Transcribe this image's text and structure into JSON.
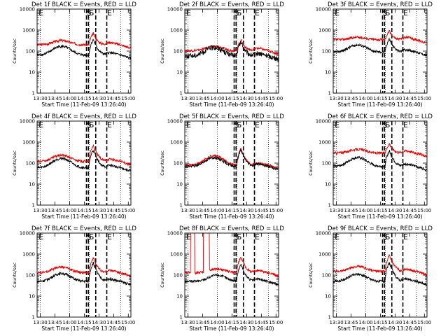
{
  "common": {
    "ylabel": "Counts/sec",
    "xlabel": "Start Time (11-Feb-09 13:26:40)",
    "x_tick_labels": [
      "13:30",
      "13:45",
      "14:00",
      "14:15",
      "14:30",
      "14:45",
      "15:00"
    ],
    "y_tick_labels": [
      "1",
      "10",
      "100",
      "1000",
      "10000"
    ],
    "event_markers": [
      "S",
      "S",
      "E",
      "E"
    ],
    "colors": {
      "events": "#000000",
      "lld": "#e00000"
    }
  },
  "chart_data": [
    {
      "type": "line",
      "title": "Det 1f BLACK = Events, RED = LLD",
      "x_range_minutes_from_start": [
        0,
        96
      ],
      "ylim": [
        1,
        10000
      ],
      "yscale": "log",
      "markers": {
        "dotted_x": [
          3.3,
          33.3,
          53.3,
          85.7
        ],
        "dashed_x": [
          50.5,
          52.5,
          60,
          71.3
        ]
      },
      "series": [
        {
          "color": "red",
          "base": 200,
          "hump_center": 25,
          "hump_factor": 1.6,
          "flare_peak": 700
        },
        {
          "color": "black",
          "base": 65,
          "hump_center": 25,
          "hump_factor": 2.6,
          "flare_peak": 360
        }
      ]
    },
    {
      "type": "line",
      "title": "Det 2f BLACK = Events, RED = LLD",
      "x_range_minutes_from_start": [
        0,
        96
      ],
      "ylim": [
        1,
        10000
      ],
      "yscale": "log",
      "markers": {
        "dotted_x": [
          3.3,
          33.3,
          53.3,
          85.7
        ],
        "dashed_x": [
          50.5,
          52.5,
          60,
          71.3
        ]
      },
      "series": [
        {
          "color": "red",
          "base": 105,
          "hump_center": 30,
          "hump_factor": 1.6,
          "flare_peak": 330
        },
        {
          "color": "black",
          "base": 60,
          "hump_center": 30,
          "hump_factor": 2.5,
          "flare_peak": 260
        }
      ]
    },
    {
      "type": "line",
      "title": "Det 3f BLACK = Events, RED = LLD",
      "x_range_minutes_from_start": [
        0,
        96
      ],
      "ylim": [
        1,
        10000
      ],
      "yscale": "log",
      "markers": {
        "dotted_x": [
          3.3,
          33.3,
          53.3,
          85.7
        ],
        "dashed_x": [
          50.5,
          52.5,
          60,
          71.3
        ]
      },
      "series": [
        {
          "color": "red",
          "base": 350,
          "hump_center": 25,
          "hump_factor": 1.3,
          "flare_peak": 900
        },
        {
          "color": "black",
          "base": 90,
          "hump_center": 25,
          "hump_factor": 2.2,
          "flare_peak": 380
        }
      ]
    },
    {
      "type": "line",
      "title": "Det 4f BLACK = Events, RED = LLD",
      "x_range_minutes_from_start": [
        0,
        96
      ],
      "ylim": [
        1,
        10000
      ],
      "yscale": "log",
      "markers": {
        "dotted_x": [
          3.3,
          33.3,
          53.3,
          85.7
        ],
        "dashed_x": [
          50.5,
          52.5,
          60,
          71.3
        ]
      },
      "series": [
        {
          "color": "red",
          "base": 120,
          "hump_center": 25,
          "hump_factor": 2.0,
          "flare_peak": 700
        },
        {
          "color": "black",
          "base": 60,
          "hump_center": 25,
          "hump_factor": 2.8,
          "flare_peak": 430
        }
      ]
    },
    {
      "type": "line",
      "title": "Det 5f BLACK = Events, RED = LLD",
      "x_range_minutes_from_start": [
        0,
        96
      ],
      "ylim": [
        1,
        10000
      ],
      "yscale": "log",
      "markers": {
        "dotted_x": [
          3.3,
          33.3,
          53.3,
          85.7
        ],
        "dashed_x": [
          50.5,
          52.5,
          60,
          71.3
        ]
      },
      "series": [
        {
          "color": "red",
          "base": 80,
          "hump_center": 30,
          "hump_factor": 2.8,
          "flare_peak": 480
        },
        {
          "color": "black",
          "base": 70,
          "hump_center": 30,
          "hump_factor": 2.6,
          "flare_peak": 420
        }
      ]
    },
    {
      "type": "line",
      "title": "Det 6f BLACK = Events, RED = LLD",
      "x_range_minutes_from_start": [
        0,
        96
      ],
      "ylim": [
        1,
        10000
      ],
      "yscale": "log",
      "markers": {
        "dotted_x": [
          3.3,
          33.3,
          53.3,
          85.7
        ],
        "dashed_x": [
          50.5,
          52.5,
          60,
          71.3
        ]
      },
      "series": [
        {
          "color": "red",
          "base": 300,
          "hump_center": 25,
          "hump_factor": 1.5,
          "flare_peak": 850
        },
        {
          "color": "black",
          "base": 70,
          "hump_center": 25,
          "hump_factor": 2.6,
          "flare_peak": 380
        }
      ]
    },
    {
      "type": "line",
      "title": "Det 7f BLACK = Events, RED = LLD",
      "x_range_minutes_from_start": [
        0,
        96
      ],
      "ylim": [
        1,
        10000
      ],
      "yscale": "log",
      "markers": {
        "dotted_x": [
          3.3,
          33.3,
          53.3,
          85.7
        ],
        "dashed_x": [
          50.5,
          52.5,
          60,
          71.3
        ]
      },
      "series": [
        {
          "color": "red",
          "base": 130,
          "hump_center": 25,
          "hump_factor": 1.9,
          "flare_peak": 650
        },
        {
          "color": "black",
          "base": 50,
          "hump_center": 25,
          "hump_factor": 2.4,
          "flare_peak": 380
        }
      ]
    },
    {
      "type": "line",
      "title": "Det 8f BLACK = Events, RED = LLD",
      "x_range_minutes_from_start": [
        0,
        96
      ],
      "ylim": [
        1,
        10000
      ],
      "yscale": "log",
      "markers": {
        "dotted_x": [
          3.3,
          33.3,
          53.3,
          85.7
        ],
        "dashed_x": [
          50.5,
          52.5,
          60,
          71.3
        ]
      },
      "series": [
        {
          "color": "red",
          "base": 130,
          "hump_center": 33,
          "hump_factor": 1.5,
          "flare_peak": 700,
          "saturation_intervals": [
            [
              6,
              10
            ],
            [
              19,
              25
            ]
          ]
        },
        {
          "color": "black",
          "base": 50,
          "hump_center": 33,
          "hump_factor": 2.0,
          "flare_peak": 320
        }
      ]
    },
    {
      "type": "line",
      "title": "Det 9f BLACK = Events, RED = LLD",
      "x_range_minutes_from_start": [
        0,
        96
      ],
      "ylim": [
        1,
        10000
      ],
      "yscale": "log",
      "markers": {
        "dotted_x": [
          3.3,
          33.3,
          53.3,
          85.7
        ],
        "dashed_x": [
          50.5,
          52.5,
          60,
          71.3
        ]
      },
      "series": [
        {
          "color": "red",
          "base": 150,
          "hump_center": 25,
          "hump_factor": 1.7,
          "flare_peak": 900
        },
        {
          "color": "black",
          "base": 50,
          "hump_center": 25,
          "hump_factor": 2.2,
          "flare_peak": 380
        }
      ]
    }
  ]
}
